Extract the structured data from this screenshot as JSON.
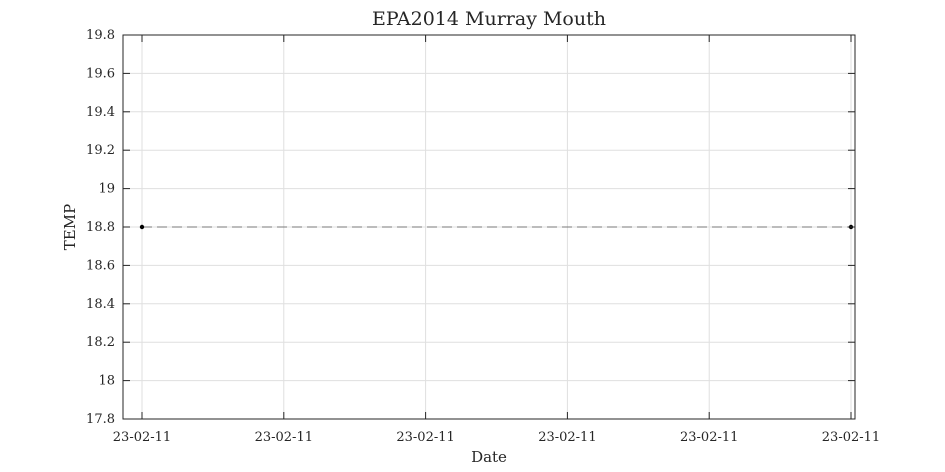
{
  "chart_data": {
    "type": "line",
    "title": "EPA2014 Murray Mouth",
    "xlabel": "Date",
    "ylabel": "TEMP",
    "ylim": [
      17.8,
      19.8
    ],
    "y_ticks": [
      "17.8",
      "18",
      "18.2",
      "18.4",
      "18.6",
      "18.8",
      "19",
      "19.2",
      "19.4",
      "19.6",
      "19.8"
    ],
    "x_tick_labels": [
      "23-02-11",
      "23-02-11",
      "23-02-11",
      "23-02-11",
      "23-02-11",
      "23-02-11"
    ],
    "grid": true,
    "series": [
      {
        "line_style": "dashed",
        "marker": "dot",
        "color": "#000000",
        "points": [
          {
            "x": "23-02-11",
            "y": 18.8
          },
          {
            "x": "23-02-11",
            "y": 18.8
          }
        ]
      }
    ]
  }
}
